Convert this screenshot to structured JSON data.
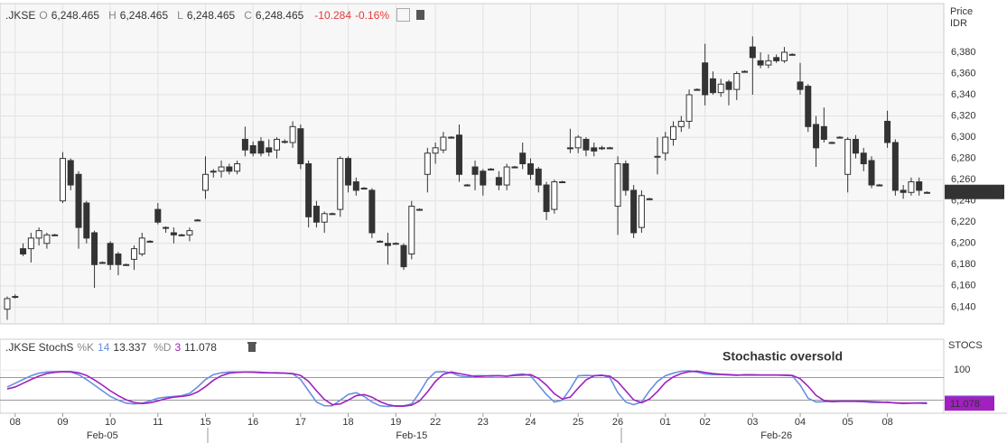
{
  "chart_data": {
    "type": "candlestick",
    "quote": {
      "symbol": ".JKSE",
      "fields": [
        {
          "label": "O",
          "value": "6,248.465"
        },
        {
          "label": "H",
          "value": "6,248.465"
        },
        {
          "label": "L",
          "value": "6,248.465"
        },
        {
          "label": "C",
          "value": "6,248.465"
        }
      ],
      "change": "-10.284",
      "change_pct": "-0.16%"
    },
    "y_axis_title": [
      "Price",
      "IDR"
    ],
    "ylim": [
      6125,
      6425
    ],
    "yticks": [
      {
        "value": 6140,
        "label": "6,140"
      },
      {
        "value": 6160,
        "label": "6,160"
      },
      {
        "value": 6180,
        "label": "6,180"
      },
      {
        "value": 6200,
        "label": "6,200"
      },
      {
        "value": 6220,
        "label": "6,220"
      },
      {
        "value": 6240,
        "label": "6,240"
      },
      {
        "value": 6260,
        "label": "6,260"
      },
      {
        "value": 6280,
        "label": "6,280"
      },
      {
        "value": 6300,
        "label": "6,300"
      },
      {
        "value": 6320,
        "label": "6,320"
      },
      {
        "value": 6340,
        "label": "6,340"
      },
      {
        "value": 6360,
        "label": "6,360"
      },
      {
        "value": 6380,
        "label": "6,380"
      }
    ],
    "last_price": {
      "value": 6248.465,
      "label": "6,248.465"
    },
    "day_labels": [
      "08",
      "09",
      "10",
      "11",
      "15",
      "16",
      "17",
      "18",
      "19",
      "22",
      "23",
      "24",
      "25",
      "26",
      "01",
      "02",
      "03",
      "04",
      "05",
      "08"
    ],
    "day_index": [
      1,
      7,
      13,
      19,
      25,
      31,
      37,
      43,
      49,
      54,
      60,
      66,
      72,
      77,
      83,
      88,
      94,
      100,
      106,
      111
    ],
    "periods": [
      {
        "label": "Feb-05",
        "index": 12
      },
      {
        "label": "Feb-15",
        "index": 51
      },
      {
        "label": "Feb-26",
        "index": 97
      }
    ],
    "ohlc": [
      [
        6138,
        6150,
        6128,
        6148
      ],
      [
        6150,
        6152,
        6148,
        6150
      ],
      [
        6195,
        6200,
        6188,
        6190
      ],
      [
        6195,
        6210,
        6182,
        6205
      ],
      [
        6205,
        6215,
        6198,
        6212
      ],
      [
        6200,
        6210,
        6195,
        6208
      ],
      [
        6208,
        6209,
        6207,
        6208
      ],
      [
        6240,
        6286,
        6238,
        6280
      ],
      [
        6278,
        6280,
        6250,
        6255
      ],
      [
        6265,
        6268,
        6195,
        6215
      ],
      [
        6238,
        6240,
        6200,
        6205
      ],
      [
        6210,
        6212,
        6158,
        6180
      ],
      [
        6182,
        6183,
        6181,
        6182
      ],
      [
        6200,
        6202,
        6175,
        6180
      ],
      [
        6190,
        6192,
        6170,
        6180
      ],
      [
        6180,
        6181,
        6179,
        6180
      ],
      [
        6185,
        6198,
        6175,
        6195
      ],
      [
        6190,
        6210,
        6188,
        6205
      ],
      [
        6202,
        6203,
        6201,
        6202
      ],
      [
        6232,
        6238,
        6218,
        6220
      ],
      [
        6215,
        6216,
        6210,
        6215
      ],
      [
        6210,
        6215,
        6200,
        6208
      ],
      [
        6208,
        6209,
        6207,
        6208
      ],
      [
        6208,
        6215,
        6202,
        6212
      ],
      [
        6222,
        6223,
        6221,
        6222
      ],
      [
        6250,
        6282,
        6242,
        6265
      ],
      [
        6268,
        6270,
        6262,
        6268
      ],
      [
        6268,
        6278,
        6262,
        6272
      ],
      [
        6272,
        6275,
        6265,
        6268
      ],
      [
        6268,
        6278,
        6265,
        6275
      ],
      [
        6298,
        6310,
        6282,
        6288
      ],
      [
        6292,
        6296,
        6282,
        6285
      ],
      [
        6296,
        6300,
        6282,
        6285
      ],
      [
        6290,
        6298,
        6282,
        6286
      ],
      [
        6288,
        6300,
        6280,
        6298
      ],
      [
        6296,
        6298,
        6294,
        6296
      ],
      [
        6295,
        6315,
        6290,
        6310
      ],
      [
        6308,
        6312,
        6270,
        6275
      ],
      [
        6275,
        6278,
        6215,
        6225
      ],
      [
        6235,
        6240,
        6215,
        6220
      ],
      [
        6220,
        6230,
        6210,
        6228
      ],
      [
        6228,
        6229,
        6227,
        6228
      ],
      [
        6232,
        6282,
        6225,
        6280
      ],
      [
        6280,
        6282,
        6248,
        6255
      ],
      [
        6258,
        6262,
        6245,
        6250
      ],
      [
        6252,
        6253,
        6251,
        6252
      ],
      [
        6250,
        6252,
        6205,
        6210
      ],
      [
        6202,
        6203,
        6201,
        6202
      ],
      [
        6200,
        6210,
        6180,
        6198
      ],
      [
        6200,
        6201,
        6199,
        6200
      ],
      [
        6198,
        6200,
        6175,
        6178
      ],
      [
        6190,
        6240,
        6185,
        6235
      ],
      [
        6232,
        6233,
        6231,
        6232
      ],
      [
        6265,
        6290,
        6248,
        6285
      ],
      [
        6285,
        6295,
        6275,
        6290
      ],
      [
        6288,
        6305,
        6285,
        6300
      ],
      [
        6300,
        6301,
        6299,
        6300
      ],
      [
        6302,
        6312,
        6258,
        6265
      ],
      [
        6255,
        6256,
        6254,
        6255
      ],
      [
        6272,
        6278,
        6250,
        6265
      ],
      [
        6268,
        6270,
        6245,
        6255
      ],
      [
        6270,
        6271,
        6269,
        6270
      ],
      [
        6262,
        6268,
        6250,
        6255
      ],
      [
        6255,
        6275,
        6250,
        6272
      ],
      [
        6272,
        6273,
        6271,
        6272
      ],
      [
        6285,
        6295,
        6270,
        6275
      ],
      [
        6275,
        6280,
        6260,
        6265
      ],
      [
        6270,
        6272,
        6248,
        6255
      ],
      [
        6255,
        6258,
        6222,
        6230
      ],
      [
        6232,
        6260,
        6228,
        6258
      ],
      [
        6258,
        6259,
        6257,
        6258
      ],
      [
        6290,
        6308,
        6285,
        6290
      ],
      [
        6290,
        6302,
        6285,
        6300
      ],
      [
        6298,
        6300,
        6282,
        6288
      ],
      [
        6290,
        6295,
        6282,
        6287
      ],
      [
        6290,
        6292,
        6288,
        6290
      ],
      [
        6290,
        6291,
        6289,
        6290
      ],
      [
        6235,
        6282,
        6208,
        6275
      ],
      [
        6275,
        6278,
        6245,
        6250
      ],
      [
        6250,
        6255,
        6205,
        6210
      ],
      [
        6215,
        6250,
        6210,
        6245
      ],
      [
        6242,
        6243,
        6241,
        6242
      ],
      [
        6282,
        6300,
        6265,
        6282
      ],
      [
        6285,
        6305,
        6278,
        6300
      ],
      [
        6298,
        6315,
        6292,
        6310
      ],
      [
        6310,
        6320,
        6305,
        6315
      ],
      [
        6315,
        6345,
        6308,
        6340
      ],
      [
        6345,
        6346,
        6344,
        6345
      ],
      [
        6370,
        6388,
        6330,
        6340
      ],
      [
        6355,
        6362,
        6340,
        6342
      ],
      [
        6342,
        6355,
        6338,
        6350
      ],
      [
        6352,
        6354,
        6330,
        6345
      ],
      [
        6345,
        6362,
        6335,
        6360
      ],
      [
        6362,
        6363,
        6361,
        6362
      ],
      [
        6385,
        6395,
        6340,
        6375
      ],
      [
        6372,
        6380,
        6365,
        6368
      ],
      [
        6368,
        6378,
        6365,
        6372
      ],
      [
        6375,
        6378,
        6370,
        6372
      ],
      [
        6372,
        6385,
        6370,
        6380
      ],
      [
        6378,
        6379,
        6377,
        6378
      ],
      [
        6352,
        6370,
        6340,
        6345
      ],
      [
        6348,
        6350,
        6305,
        6310
      ],
      [
        6312,
        6320,
        6272,
        6290
      ],
      [
        6310,
        6328,
        6295,
        6298
      ],
      [
        6295,
        6296,
        6294,
        6295
      ],
      [
        6300,
        6301,
        6299,
        6300
      ],
      [
        6265,
        6300,
        6248,
        6298
      ],
      [
        6298,
        6302,
        6280,
        6285
      ],
      [
        6285,
        6290,
        6268,
        6275
      ],
      [
        6278,
        6282,
        6252,
        6255
      ],
      [
        6255,
        6256,
        6254,
        6255
      ],
      [
        6315,
        6325,
        6290,
        6295
      ],
      [
        6295,
        6298,
        6245,
        6250
      ],
      [
        6250,
        6255,
        6242,
        6248
      ],
      [
        6248,
        6262,
        6245,
        6258
      ],
      [
        6258,
        6262,
        6245,
        6250
      ],
      [
        6248,
        6249,
        6247,
        6248
      ]
    ],
    "up_color": "#ffffff",
    "down_color": "#333333",
    "grid": true,
    "indicator": {
      "name": ".JKSE StochS",
      "axis_title": "STOCS",
      "ylim": [
        -10,
        115
      ],
      "yticks": [
        100
      ],
      "bands": [
        20,
        80
      ],
      "annotation": "Stochastic oversold",
      "series": [
        {
          "name": "%K",
          "period": 14,
          "color": "#6a8fe0",
          "values": [
            55,
            65,
            75,
            85,
            92,
            95,
            96,
            96,
            95,
            88,
            75,
            60,
            45,
            30,
            20,
            12,
            10,
            12,
            18,
            25,
            28,
            30,
            32,
            38,
            55,
            75,
            88,
            93,
            95,
            95,
            95,
            94,
            93,
            93,
            92,
            92,
            90,
            75,
            45,
            15,
            5,
            5,
            20,
            35,
            40,
            30,
            15,
            5,
            3,
            5,
            5,
            10,
            40,
            75,
            95,
            96,
            93,
            85,
            82,
            85,
            85,
            84,
            85,
            84,
            88,
            90,
            85,
            60,
            35,
            15,
            20,
            50,
            85,
            86,
            85,
            87,
            80,
            40,
            15,
            8,
            15,
            45,
            70,
            85,
            92,
            97,
            98,
            95,
            90,
            88,
            88,
            87,
            86,
            88,
            88,
            87,
            87,
            87,
            86,
            85,
            60,
            25,
            15,
            16,
            17,
            17,
            18,
            17,
            16,
            14,
            14,
            15,
            12,
            11,
            12,
            13,
            13.337
          ]
        },
        {
          "name": "%D",
          "period": 3,
          "color": "#a020c0",
          "values": [
            50,
            55,
            65,
            75,
            84,
            91,
            94,
            96,
            96,
            93,
            86,
            74,
            60,
            45,
            32,
            21,
            14,
            11,
            13,
            18,
            24,
            28,
            30,
            33,
            42,
            56,
            73,
            85,
            92,
            94,
            95,
            95,
            94,
            93,
            93,
            92,
            91,
            86,
            70,
            45,
            22,
            8,
            10,
            20,
            32,
            35,
            28,
            16,
            8,
            4,
            4,
            7,
            18,
            42,
            70,
            89,
            95,
            91,
            87,
            83,
            84,
            85,
            85,
            84,
            86,
            87,
            88,
            78,
            60,
            37,
            23,
            28,
            52,
            74,
            85,
            86,
            84,
            69,
            45,
            21,
            13,
            23,
            43,
            67,
            82,
            91,
            96,
            97,
            94,
            91,
            89,
            88,
            87,
            87,
            87,
            87,
            87,
            87,
            87,
            86,
            77,
            57,
            33,
            19,
            16,
            17,
            17,
            17,
            17,
            16,
            15,
            14,
            13,
            12,
            12,
            12,
            11.078
          ]
        }
      ]
    }
  }
}
